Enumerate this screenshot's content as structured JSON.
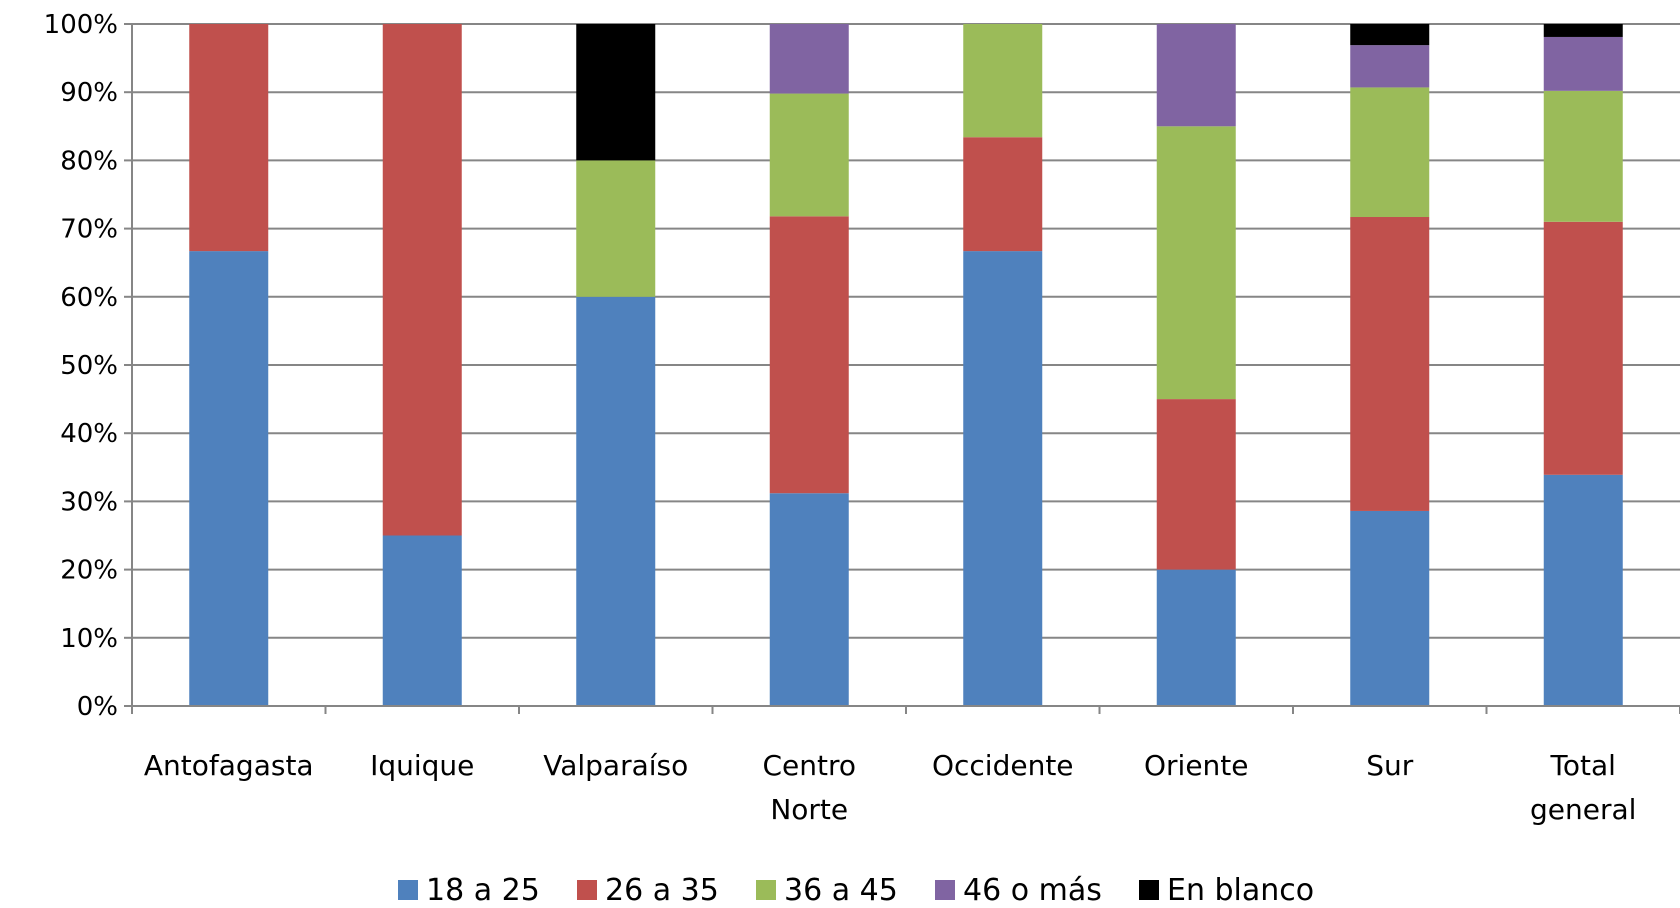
{
  "chart_data": {
    "type": "bar",
    "stacked": true,
    "percent_stacked": true,
    "categories": [
      [
        "Antofagasta"
      ],
      [
        "Iquique"
      ],
      [
        "Valparaíso"
      ],
      [
        "Centro",
        "Norte"
      ],
      [
        "Occidente"
      ],
      [
        "Oriente"
      ],
      [
        "Sur"
      ],
      [
        "Total",
        "general"
      ]
    ],
    "series": [
      {
        "name": "18 a 25",
        "color": "#4F81BD",
        "values": [
          66.7,
          25,
          60,
          31.2,
          66.7,
          20,
          28.6,
          33.9
        ]
      },
      {
        "name": "26 a 35",
        "color": "#C0504D",
        "values": [
          33.3,
          75,
          0,
          40.6,
          16.7,
          25,
          43.1,
          37.1
        ]
      },
      {
        "name": "36 a 45",
        "color": "#9BBB59",
        "values": [
          0,
          0,
          20,
          18.0,
          16.6,
          40,
          19.0,
          19.2
        ]
      },
      {
        "name": "46 o más",
        "color": "#8064A2",
        "values": [
          0,
          0,
          0,
          10.2,
          0,
          15,
          6.2,
          7.9
        ]
      },
      {
        "name": "En blanco",
        "color": "#000000",
        "values": [
          0,
          0,
          20,
          0,
          0,
          0,
          3.1,
          1.9
        ]
      }
    ],
    "y_ticks": [
      "0%",
      "10%",
      "20%",
      "30%",
      "40%",
      "50%",
      "60%",
      "70%",
      "80%",
      "90%",
      "100%"
    ],
    "ylim": [
      0,
      100
    ],
    "grid": true,
    "legend_position": "bottom",
    "title": "",
    "xlabel": "",
    "ylabel": ""
  }
}
